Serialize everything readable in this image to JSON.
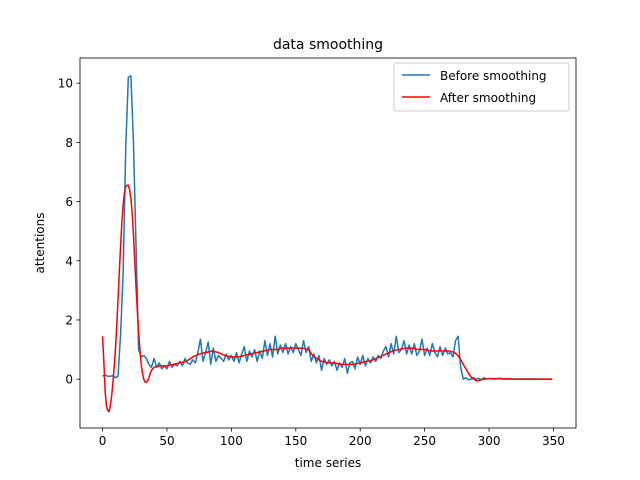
{
  "chart_data": {
    "type": "line",
    "title": "data smoothing",
    "xlabel": "time series",
    "ylabel": "attentions",
    "xlim": [
      -17.5,
      367.5
    ],
    "ylim": [
      -1.65,
      10.85
    ],
    "xticks": [
      0,
      50,
      100,
      150,
      200,
      250,
      300,
      350
    ],
    "yticks": [
      0,
      2,
      4,
      6,
      8,
      10
    ],
    "grid": false,
    "legend_position": "upper right",
    "series": [
      {
        "name": "Before smoothing",
        "color": "#1f77b4",
        "points": [
          [
            0,
            0.1
          ],
          [
            2,
            0.15
          ],
          [
            4,
            0.1
          ],
          [
            6,
            0.1
          ],
          [
            8,
            0.12
          ],
          [
            10,
            0.05
          ],
          [
            12,
            0.1
          ],
          [
            14,
            1.5
          ],
          [
            16,
            3.6
          ],
          [
            18,
            7.8
          ],
          [
            20,
            10.2
          ],
          [
            22,
            10.25
          ],
          [
            24,
            8.0
          ],
          [
            26,
            4.5
          ],
          [
            28,
            1.0
          ],
          [
            30,
            0.75
          ],
          [
            32,
            0.8
          ],
          [
            34,
            0.7
          ],
          [
            36,
            0.5
          ],
          [
            38,
            0.4
          ],
          [
            40,
            0.7
          ],
          [
            42,
            0.4
          ],
          [
            44,
            0.55
          ],
          [
            46,
            0.35
          ],
          [
            48,
            0.45
          ],
          [
            50,
            0.35
          ],
          [
            52,
            0.6
          ],
          [
            54,
            0.4
          ],
          [
            56,
            0.5
          ],
          [
            58,
            0.45
          ],
          [
            60,
            0.6
          ],
          [
            62,
            0.45
          ],
          [
            64,
            0.7
          ],
          [
            66,
            0.55
          ],
          [
            68,
            0.5
          ],
          [
            70,
            0.65
          ],
          [
            72,
            0.55
          ],
          [
            74,
            0.9
          ],
          [
            76,
            1.35
          ],
          [
            78,
            0.6
          ],
          [
            80,
            0.9
          ],
          [
            82,
            1.25
          ],
          [
            84,
            0.5
          ],
          [
            86,
            1.05
          ],
          [
            88,
            0.6
          ],
          [
            90,
            0.8
          ],
          [
            92,
            0.7
          ],
          [
            94,
            0.6
          ],
          [
            96,
            0.85
          ],
          [
            98,
            0.65
          ],
          [
            100,
            0.8
          ],
          [
            102,
            0.6
          ],
          [
            104,
            0.9
          ],
          [
            106,
            0.55
          ],
          [
            108,
            0.85
          ],
          [
            110,
            1.1
          ],
          [
            112,
            0.6
          ],
          [
            114,
            0.95
          ],
          [
            116,
            0.75
          ],
          [
            118,
            1.0
          ],
          [
            120,
            0.6
          ],
          [
            122,
            0.95
          ],
          [
            124,
            0.7
          ],
          [
            126,
            1.3
          ],
          [
            128,
            0.8
          ],
          [
            130,
            1.2
          ],
          [
            132,
            0.75
          ],
          [
            134,
            1.45
          ],
          [
            136,
            0.85
          ],
          [
            138,
            1.15
          ],
          [
            140,
            0.9
          ],
          [
            142,
            1.2
          ],
          [
            144,
            0.85
          ],
          [
            146,
            1.1
          ],
          [
            148,
            0.9
          ],
          [
            150,
            1.2
          ],
          [
            152,
            1.0
          ],
          [
            154,
            0.8
          ],
          [
            156,
            1.3
          ],
          [
            158,
            0.9
          ],
          [
            160,
            1.1
          ],
          [
            162,
            0.6
          ],
          [
            164,
            0.85
          ],
          [
            166,
            0.55
          ],
          [
            168,
            0.8
          ],
          [
            170,
            0.3
          ],
          [
            172,
            0.7
          ],
          [
            174,
            0.5
          ],
          [
            176,
            0.65
          ],
          [
            178,
            0.45
          ],
          [
            180,
            0.6
          ],
          [
            182,
            0.3
          ],
          [
            184,
            0.55
          ],
          [
            186,
            0.4
          ],
          [
            188,
            0.7
          ],
          [
            190,
            0.2
          ],
          [
            192,
            0.55
          ],
          [
            194,
            0.6
          ],
          [
            196,
            0.35
          ],
          [
            198,
            0.75
          ],
          [
            200,
            0.5
          ],
          [
            202,
            0.8
          ],
          [
            204,
            0.45
          ],
          [
            206,
            0.7
          ],
          [
            208,
            0.55
          ],
          [
            210,
            0.75
          ],
          [
            212,
            0.6
          ],
          [
            214,
            0.8
          ],
          [
            216,
            0.7
          ],
          [
            218,
            0.95
          ],
          [
            220,
            1.1
          ],
          [
            222,
            0.75
          ],
          [
            224,
            1.2
          ],
          [
            226,
            0.85
          ],
          [
            228,
            1.45
          ],
          [
            230,
            0.9
          ],
          [
            232,
            1.0
          ],
          [
            234,
            1.3
          ],
          [
            236,
            0.85
          ],
          [
            238,
            1.15
          ],
          [
            240,
            0.85
          ],
          [
            242,
            1.2
          ],
          [
            244,
            0.8
          ],
          [
            246,
            0.95
          ],
          [
            248,
            1.35
          ],
          [
            250,
            0.8
          ],
          [
            252,
            1.05
          ],
          [
            254,
            0.8
          ],
          [
            256,
            1.2
          ],
          [
            258,
            0.9
          ],
          [
            260,
            0.75
          ],
          [
            262,
            1.1
          ],
          [
            264,
            0.8
          ],
          [
            266,
            1.05
          ],
          [
            268,
            0.85
          ],
          [
            270,
            0.9
          ],
          [
            272,
            0.75
          ],
          [
            274,
            1.3
          ],
          [
            276,
            1.45
          ],
          [
            278,
            0.4
          ],
          [
            280,
            0.0
          ],
          [
            282,
            0.05
          ],
          [
            284,
            -0.02
          ],
          [
            286,
            0.0
          ],
          [
            288,
            0.05
          ],
          [
            290,
            0.0
          ],
          [
            292,
            0.03
          ],
          [
            294,
            -0.02
          ],
          [
            296,
            0.05
          ],
          [
            298,
            0.0
          ],
          [
            300,
            0.02
          ],
          [
            304,
            0.0
          ],
          [
            308,
            0.03
          ],
          [
            312,
            0.0
          ],
          [
            316,
            0.02
          ],
          [
            320,
            0.0
          ],
          [
            330,
            0.01
          ],
          [
            340,
            0.0
          ],
          [
            349,
            0.0
          ]
        ]
      },
      {
        "name": "After smoothing",
        "color": "#ff0000",
        "points": [
          [
            0,
            1.45
          ],
          [
            1,
            0.6
          ],
          [
            2,
            -0.4
          ],
          [
            3,
            -0.9
          ],
          [
            4,
            -1.05
          ],
          [
            5,
            -1.1
          ],
          [
            6,
            -0.9
          ],
          [
            7,
            -0.6
          ],
          [
            8,
            -0.15
          ],
          [
            9,
            0.4
          ],
          [
            10,
            1.0
          ],
          [
            11,
            1.8
          ],
          [
            12,
            2.7
          ],
          [
            13,
            3.6
          ],
          [
            14,
            4.5
          ],
          [
            15,
            5.3
          ],
          [
            16,
            5.9
          ],
          [
            17,
            6.3
          ],
          [
            18,
            6.5
          ],
          [
            19,
            6.55
          ],
          [
            20,
            6.55
          ],
          [
            21,
            6.4
          ],
          [
            22,
            6.1
          ],
          [
            23,
            5.6
          ],
          [
            24,
            4.9
          ],
          [
            25,
            4.0
          ],
          [
            26,
            3.1
          ],
          [
            27,
            2.3
          ],
          [
            28,
            1.6
          ],
          [
            29,
            1.0
          ],
          [
            30,
            0.5
          ],
          [
            31,
            0.2
          ],
          [
            32,
            0.0
          ],
          [
            33,
            -0.1
          ],
          [
            34,
            -0.1
          ],
          [
            35,
            -0.05
          ],
          [
            36,
            0.05
          ],
          [
            37,
            0.2
          ],
          [
            38,
            0.3
          ],
          [
            40,
            0.4
          ],
          [
            45,
            0.45
          ],
          [
            50,
            0.45
          ],
          [
            55,
            0.5
          ],
          [
            60,
            0.55
          ],
          [
            65,
            0.6
          ],
          [
            70,
            0.75
          ],
          [
            75,
            0.85
          ],
          [
            80,
            0.9
          ],
          [
            85,
            0.95
          ],
          [
            90,
            0.9
          ],
          [
            95,
            0.8
          ],
          [
            100,
            0.75
          ],
          [
            105,
            0.75
          ],
          [
            110,
            0.8
          ],
          [
            115,
            0.85
          ],
          [
            120,
            0.9
          ],
          [
            125,
            0.95
          ],
          [
            130,
            1.0
          ],
          [
            135,
            1.0
          ],
          [
            140,
            1.05
          ],
          [
            145,
            1.05
          ],
          [
            150,
            1.05
          ],
          [
            155,
            1.05
          ],
          [
            160,
            1.0
          ],
          [
            163,
            0.8
          ],
          [
            166,
            0.7
          ],
          [
            170,
            0.6
          ],
          [
            175,
            0.55
          ],
          [
            180,
            0.55
          ],
          [
            185,
            0.5
          ],
          [
            190,
            0.5
          ],
          [
            195,
            0.5
          ],
          [
            200,
            0.55
          ],
          [
            205,
            0.6
          ],
          [
            210,
            0.65
          ],
          [
            215,
            0.75
          ],
          [
            220,
            0.85
          ],
          [
            225,
            0.95
          ],
          [
            230,
            1.0
          ],
          [
            235,
            1.05
          ],
          [
            240,
            1.05
          ],
          [
            245,
            1.0
          ],
          [
            250,
            1.0
          ],
          [
            255,
            0.95
          ],
          [
            260,
            0.95
          ],
          [
            265,
            0.95
          ],
          [
            270,
            0.95
          ],
          [
            273,
            0.9
          ],
          [
            276,
            0.8
          ],
          [
            278,
            0.65
          ],
          [
            280,
            0.5
          ],
          [
            282,
            0.35
          ],
          [
            284,
            0.2
          ],
          [
            286,
            0.08
          ],
          [
            288,
            0.0
          ],
          [
            290,
            -0.05
          ],
          [
            292,
            -0.05
          ],
          [
            294,
            -0.02
          ],
          [
            296,
            0.0
          ],
          [
            300,
            0.02
          ],
          [
            305,
            0.02
          ],
          [
            310,
            0.01
          ],
          [
            320,
            0.0
          ],
          [
            330,
            0.0
          ],
          [
            340,
            0.0
          ],
          [
            349,
            0.0
          ]
        ]
      }
    ]
  }
}
